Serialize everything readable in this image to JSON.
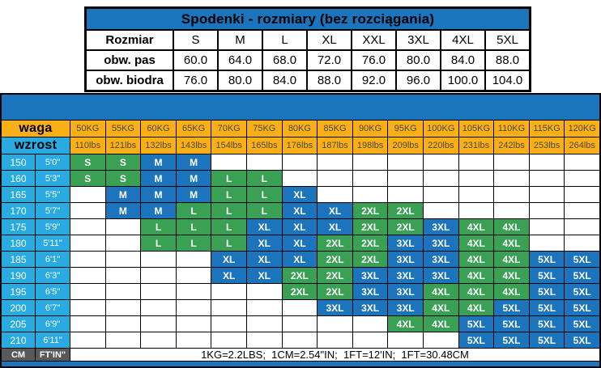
{
  "top_table": {
    "title": "Spodenki - rozmiary (bez rozciągania)",
    "row_headers": [
      "Rozmiar",
      "obw. pas",
      "obw. biodra"
    ],
    "sizes": [
      "S",
      "M",
      "L",
      "XL",
      "XXL",
      "3XL",
      "4XL",
      "5XL"
    ],
    "pas": [
      "60.0",
      "64.0",
      "68.0",
      "72.0",
      "76.0",
      "80.0",
      "84.0",
      "88.0"
    ],
    "biodra": [
      "76.0",
      "80.0",
      "84.0",
      "88.0",
      "92.0",
      "96.0",
      "100.0",
      "104.0"
    ]
  },
  "matrix": {
    "weight_label": "waga",
    "height_label": "wzrost",
    "kg": [
      "50KG",
      "55KG",
      "60KG",
      "65KG",
      "70KG",
      "75KG",
      "80KG",
      "85KG",
      "90KG",
      "95KG",
      "100KG",
      "105KG",
      "110KG",
      "115KG",
      "120KG"
    ],
    "lbs": [
      "110lbs",
      "121lbs",
      "132lbs",
      "143lbs",
      "154lbs",
      "165lbs",
      "176lbs",
      "187lbs",
      "198lbs",
      "209lbs",
      "220lbs",
      "231lbs",
      "242lbs",
      "253lbs",
      "264lbs"
    ],
    "rows": [
      {
        "cm": "150",
        "ft": "5'0\"",
        "cells": [
          "S",
          "S",
          "M",
          "M",
          "",
          "",
          "",
          "",
          "",
          "",
          "",
          "",
          "",
          "",
          ""
        ]
      },
      {
        "cm": "160",
        "ft": "5'3\"",
        "cells": [
          "S",
          "S",
          "M",
          "M",
          "L",
          "L",
          "",
          "",
          "",
          "",
          "",
          "",
          "",
          "",
          ""
        ]
      },
      {
        "cm": "165",
        "ft": "5'5\"",
        "cells": [
          "",
          "M",
          "M",
          "M",
          "L",
          "L",
          "XL",
          "",
          "",
          "",
          "",
          "",
          "",
          "",
          ""
        ]
      },
      {
        "cm": "170",
        "ft": "5'7\"",
        "cells": [
          "",
          "M",
          "M",
          "L",
          "L",
          "L",
          "XL",
          "XL",
          "2XL",
          "2XL",
          "",
          "",
          "",
          "",
          ""
        ]
      },
      {
        "cm": "175",
        "ft": "5'9\"",
        "cells": [
          "",
          "",
          "L",
          "L",
          "L",
          "XL",
          "XL",
          "XL",
          "2XL",
          "2XL",
          "3XL",
          "4XL",
          "4XL",
          "",
          ""
        ]
      },
      {
        "cm": "180",
        "ft": "5'11\"",
        "cells": [
          "",
          "",
          "L",
          "L",
          "L",
          "XL",
          "XL",
          "2XL",
          "2XL",
          "3XL",
          "3XL",
          "4XL",
          "4XL",
          "",
          ""
        ]
      },
      {
        "cm": "185",
        "ft": "6'1\"",
        "cells": [
          "",
          "",
          "",
          "",
          "XL",
          "XL",
          "XL",
          "2XL",
          "2XL",
          "3XL",
          "3XL",
          "4XL",
          "4XL",
          "5XL",
          "5XL"
        ]
      },
      {
        "cm": "190",
        "ft": "6'3\"",
        "cells": [
          "",
          "",
          "",
          "",
          "XL",
          "XL",
          "2XL",
          "2XL",
          "3XL",
          "3XL",
          "3XL",
          "4XL",
          "4XL",
          "5XL",
          "5XL"
        ]
      },
      {
        "cm": "195",
        "ft": "6'5\"",
        "cells": [
          "",
          "",
          "",
          "",
          "",
          "",
          "2XL",
          "2XL",
          "3XL",
          "3XL",
          "4XL",
          "4XL",
          "4XL",
          "5XL",
          "5XL"
        ]
      },
      {
        "cm": "200",
        "ft": "6'7\"",
        "cells": [
          "",
          "",
          "",
          "",
          "",
          "",
          "",
          "3XL",
          "3XL",
          "3XL",
          "4XL",
          "4XL",
          "5XL",
          "5XL",
          "5XL"
        ]
      },
      {
        "cm": "205",
        "ft": "6'9\"",
        "cells": [
          "",
          "",
          "",
          "",
          "",
          "",
          "",
          "",
          "",
          "4XL",
          "4XL",
          "5XL",
          "5XL",
          "5XL",
          "5XL"
        ]
      },
      {
        "cm": "210",
        "ft": "6'11\"",
        "cells": [
          "",
          "",
          "",
          "",
          "",
          "",
          "",
          "",
          "",
          "",
          "",
          "5XL",
          "5XL",
          "5XL",
          "5XL"
        ]
      }
    ],
    "unit_cm": "CM",
    "unit_ftin": "FT'IN\"",
    "footnote": "1KG=2.2LBS;  1CM=2.54\"IN;  1FT=12'IN;  1FT=30.48CM"
  },
  "colors": {
    "blue": "#1C75BC",
    "green": "#3AA054",
    "cyan": "#29ABE2",
    "orange": "#F9AF15",
    "dark_gray": "#58595B",
    "green_sizes": [
      "S",
      "L",
      "2XL",
      "4XL"
    ],
    "blue_sizes": [
      "M",
      "XL",
      "3XL",
      "5XL"
    ]
  }
}
